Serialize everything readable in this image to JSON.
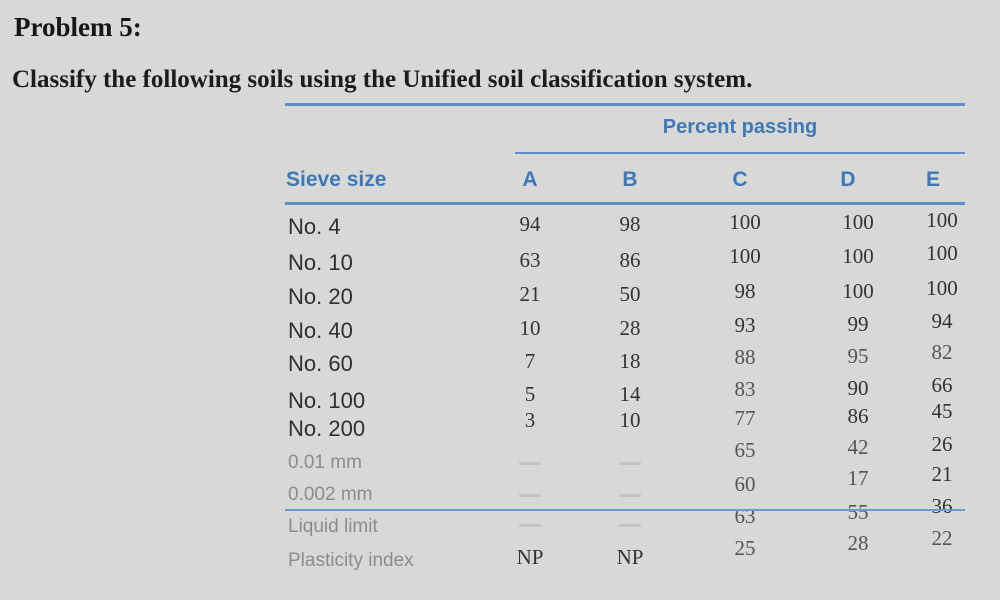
{
  "problem_title": "Problem 5:",
  "instruction": "Classify the following soils using the Unified soil classification system.",
  "table": {
    "group_header": "Percent passing",
    "sieve_header": "Sieve size",
    "columns": [
      "A",
      "B",
      "C",
      "D",
      "E"
    ],
    "rows": [
      {
        "label": "No. 4",
        "values": [
          "94",
          "98",
          "100",
          "100",
          "100"
        ]
      },
      {
        "label": "No. 10",
        "values": [
          "63",
          "86",
          "100",
          "100",
          "100"
        ]
      },
      {
        "label": "No. 20",
        "values": [
          "21",
          "50",
          "98",
          "100",
          "100"
        ]
      },
      {
        "label": "No. 40",
        "values": [
          "10",
          "28",
          "93",
          "99",
          "94"
        ]
      },
      {
        "label": "No. 60",
        "values": [
          "7",
          "18",
          "88",
          "95",
          "82"
        ]
      },
      {
        "label": "No. 100",
        "values": [
          "5",
          "14",
          "83",
          "90",
          "66"
        ]
      },
      {
        "label": "No. 200",
        "values": [
          "3",
          "10",
          "77",
          "86",
          "45"
        ]
      },
      {
        "label": "0.01 mm",
        "values": [
          "",
          "",
          "65",
          "42",
          "26"
        ]
      },
      {
        "label": "0.002 mm",
        "values": [
          "",
          "",
          "60",
          "17",
          "21"
        ]
      },
      {
        "label": "Liquid limit",
        "values": [
          "",
          "",
          "63",
          "55",
          "36"
        ]
      },
      {
        "label": "Plasticity index",
        "values": [
          "NP",
          "NP",
          "25",
          "28",
          "22"
        ]
      }
    ]
  }
}
